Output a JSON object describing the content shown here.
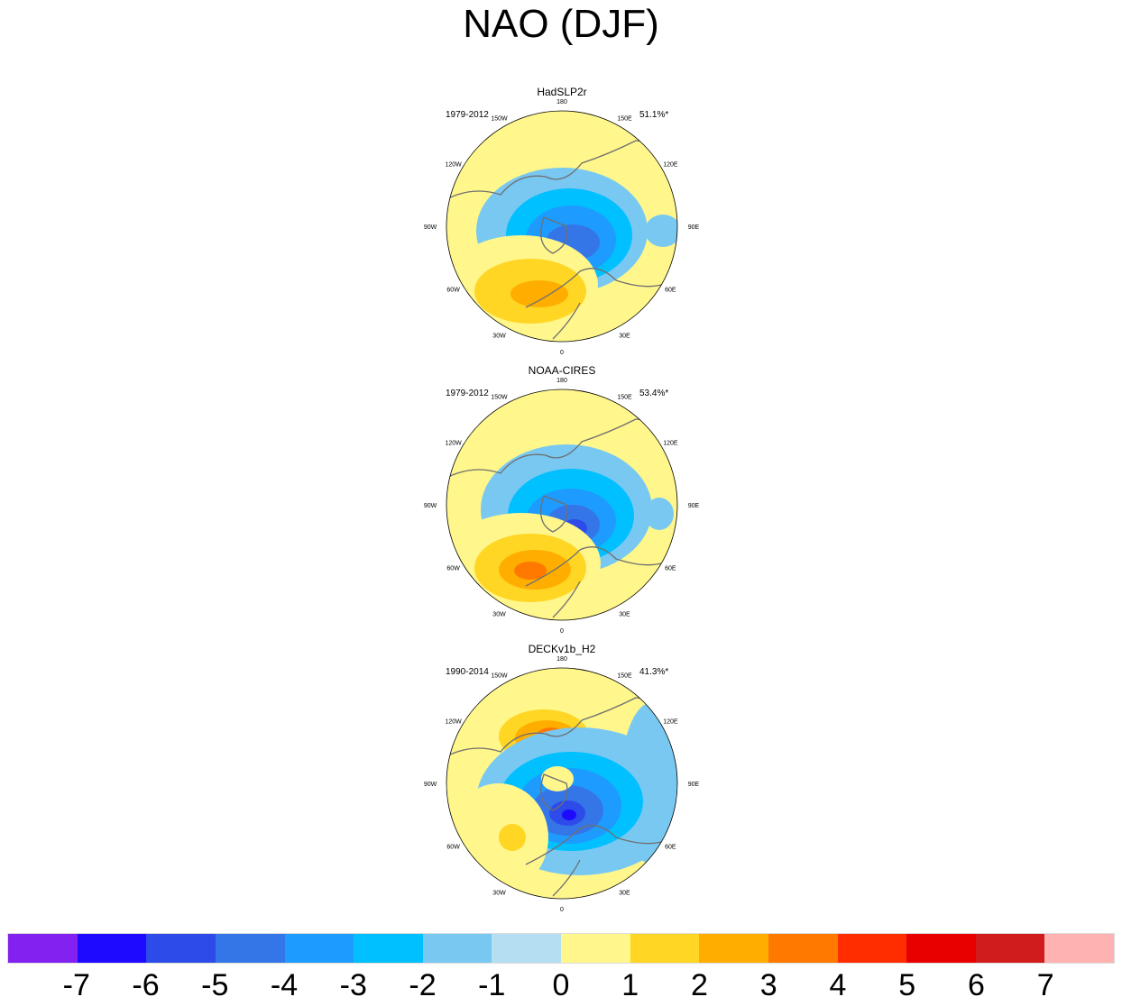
{
  "title": "NAO (DJF)",
  "panels": [
    {
      "name": "HadSLP2r",
      "period": "1979-2012",
      "variance": "51.1%*"
    },
    {
      "name": "NOAA-CIRES",
      "period": "1979-2012",
      "variance": "53.4%*"
    },
    {
      "name": "DECKv1b_H2",
      "period": "1990-2014",
      "variance": "41.3%*"
    }
  ],
  "longitude_labels": [
    "0",
    "30E",
    "60E",
    "90E",
    "120E",
    "150E",
    "180",
    "150W",
    "120W",
    "90W",
    "60W",
    "30W"
  ],
  "colorbar": {
    "labels": [
      "-7",
      "-6",
      "-5",
      "-4",
      "-3",
      "-2",
      "-1",
      "0",
      "1",
      "2",
      "3",
      "4",
      "5",
      "6",
      "7"
    ],
    "colors": [
      "#8221f0",
      "#1e0aff",
      "#2d4be8",
      "#3476e8",
      "#1e9bff",
      "#00c0ff",
      "#78c8f2",
      "#b4def2",
      "#fff68c",
      "#ffd624",
      "#ffae00",
      "#ff7800",
      "#ff2d00",
      "#e80000",
      "#d01c1c",
      "#ffb2b2"
    ]
  }
}
